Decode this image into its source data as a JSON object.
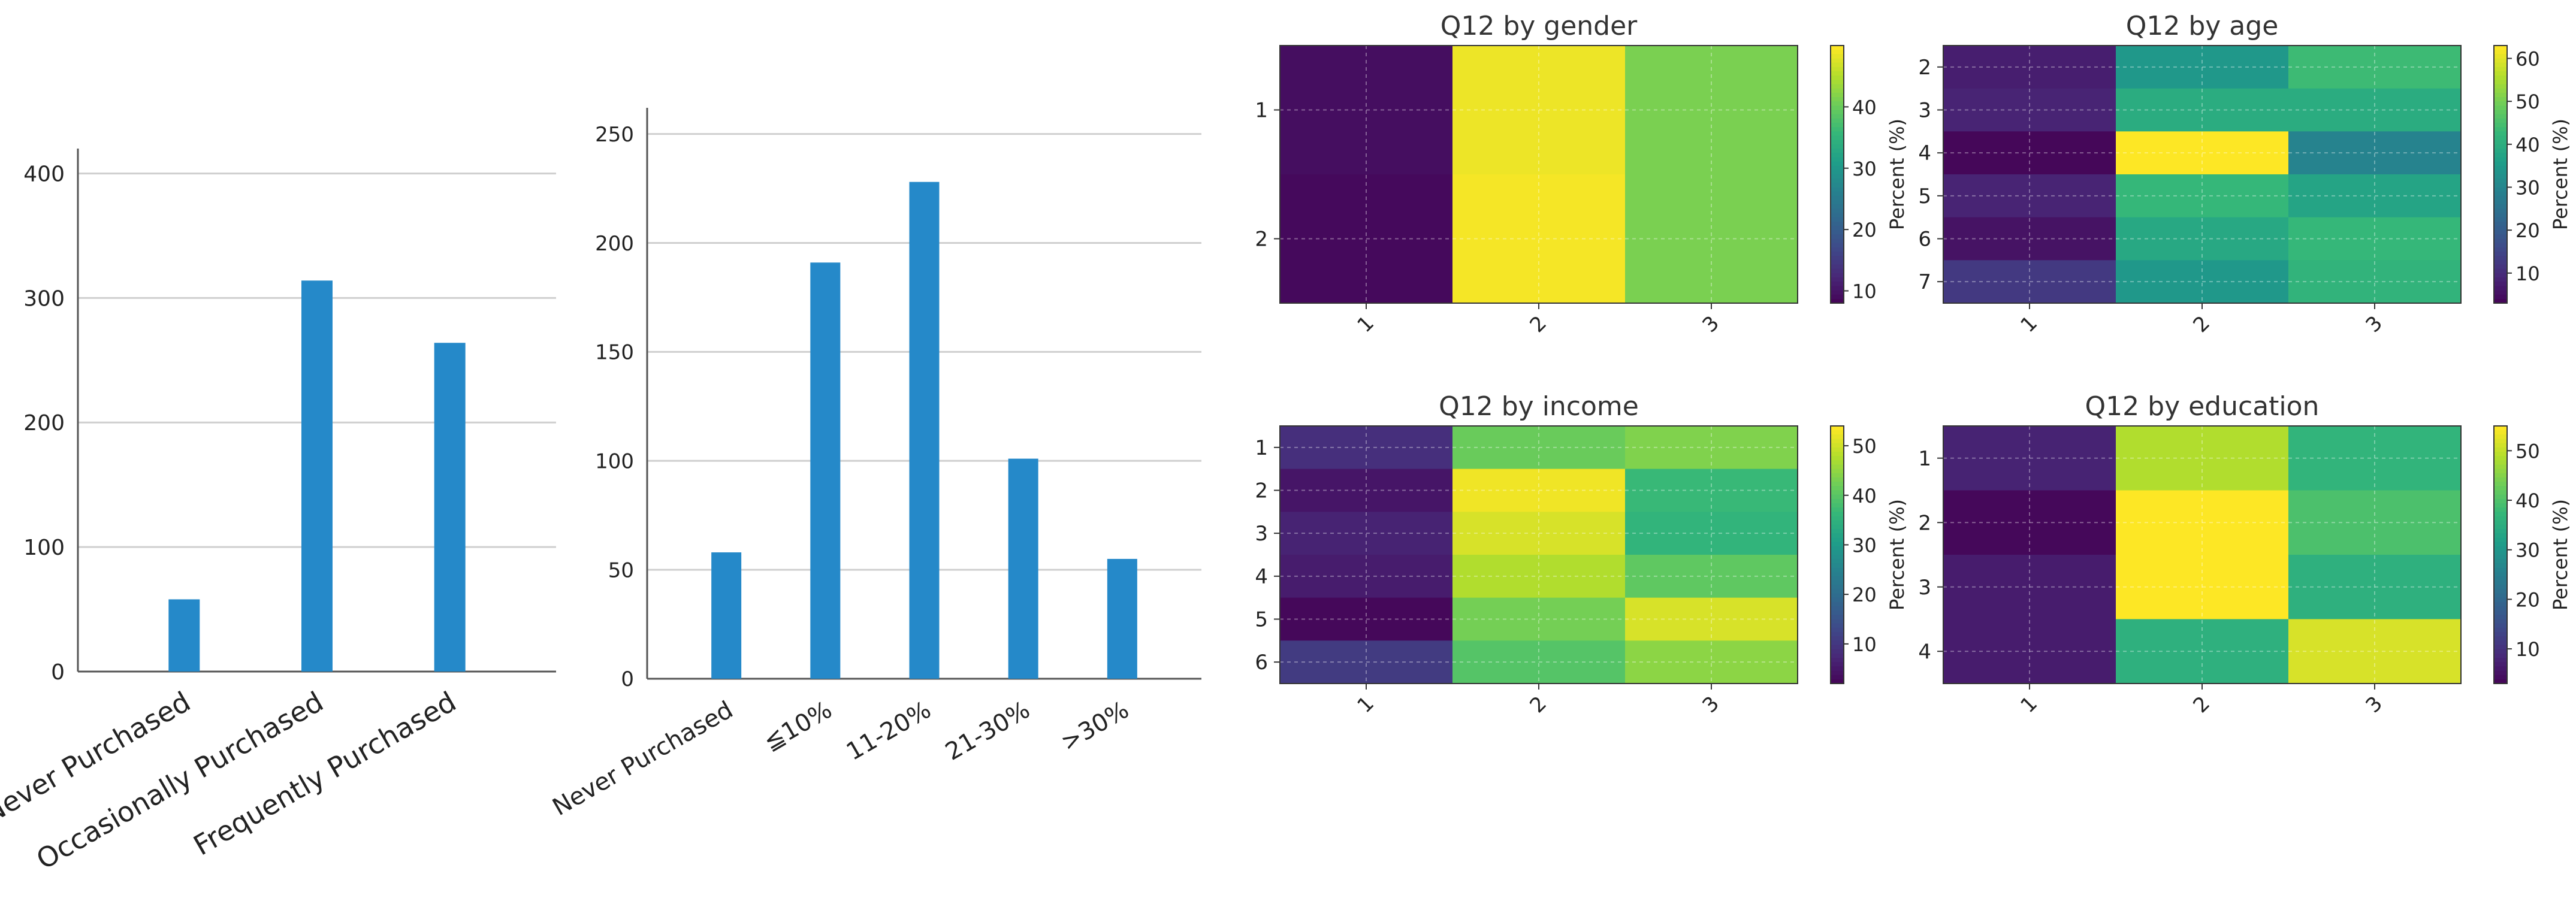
{
  "chart_data": [
    {
      "type": "bar",
      "categories": [
        "Never Purchased",
        "Occasionally Purchased",
        "Frequently Purchased"
      ],
      "values": [
        58,
        314,
        264
      ],
      "ylim": [
        0,
        420
      ],
      "yticks": [
        0,
        100,
        200,
        300,
        400
      ],
      "grid": "horizontal",
      "color": "#2589c9"
    },
    {
      "type": "bar",
      "categories": [
        "Never Purchased",
        "≦10%",
        "11-20%",
        "21-30%",
        ">30%"
      ],
      "values": [
        58,
        191,
        228,
        101,
        55
      ],
      "ylim": [
        0,
        262
      ],
      "yticks": [
        0,
        50,
        100,
        150,
        200,
        250
      ],
      "grid": "horizontal",
      "color": "#2589c9"
    },
    {
      "type": "heatmap",
      "title": "Q12 by gender",
      "rows": [
        "1",
        "2"
      ],
      "cols": [
        "1",
        "2",
        "3"
      ],
      "values": [
        [
          9.5,
          49,
          41.5
        ],
        [
          9,
          49.5,
          41.5
        ]
      ],
      "vmin": 8,
      "vmax": 50,
      "cbar_ticks": [
        10,
        20,
        30,
        40
      ],
      "cbar_label": "Percent (%)"
    },
    {
      "type": "heatmap",
      "title": "Q12 by age",
      "rows": [
        "2",
        "3",
        "4",
        "5",
        "6",
        "7"
      ],
      "cols": [
        "1",
        "2",
        "3"
      ],
      "values": [
        [
          8,
          35,
          44
        ],
        [
          9,
          40,
          40
        ],
        [
          4,
          63,
          30
        ],
        [
          9,
          43,
          38
        ],
        [
          6,
          39,
          43
        ],
        [
          13,
          35,
          42
        ]
      ],
      "vmin": 3,
      "vmax": 63,
      "cbar_ticks": [
        10,
        20,
        30,
        40,
        50,
        60
      ],
      "cbar_label": "Percent (%)"
    },
    {
      "type": "heatmap",
      "title": "Q12 by income",
      "rows": [
        "1",
        "2",
        "3",
        "4",
        "5",
        "6"
      ],
      "cols": [
        "1",
        "2",
        "3"
      ],
      "values": [
        [
          9,
          42,
          44
        ],
        [
          5,
          53,
          37
        ],
        [
          7,
          51,
          36
        ],
        [
          6,
          48,
          41
        ],
        [
          3,
          43,
          51
        ],
        [
          11,
          40,
          45
        ]
      ],
      "vmin": 2,
      "vmax": 54,
      "cbar_ticks": [
        10,
        20,
        30,
        40,
        50
      ],
      "cbar_label": "Percent (%)"
    },
    {
      "type": "heatmap",
      "title": "Q12 by education",
      "rows": [
        "1",
        "2",
        "3",
        "4"
      ],
      "cols": [
        "1",
        "2",
        "3"
      ],
      "values": [
        [
          8,
          49,
          37
        ],
        [
          4,
          55,
          40
        ],
        [
          7,
          55,
          36
        ],
        [
          7,
          36,
          52
        ]
      ],
      "vmin": 3,
      "vmax": 55,
      "cbar_ticks": [
        10,
        20,
        30,
        40,
        50
      ],
      "cbar_label": "Percent (%)"
    }
  ]
}
